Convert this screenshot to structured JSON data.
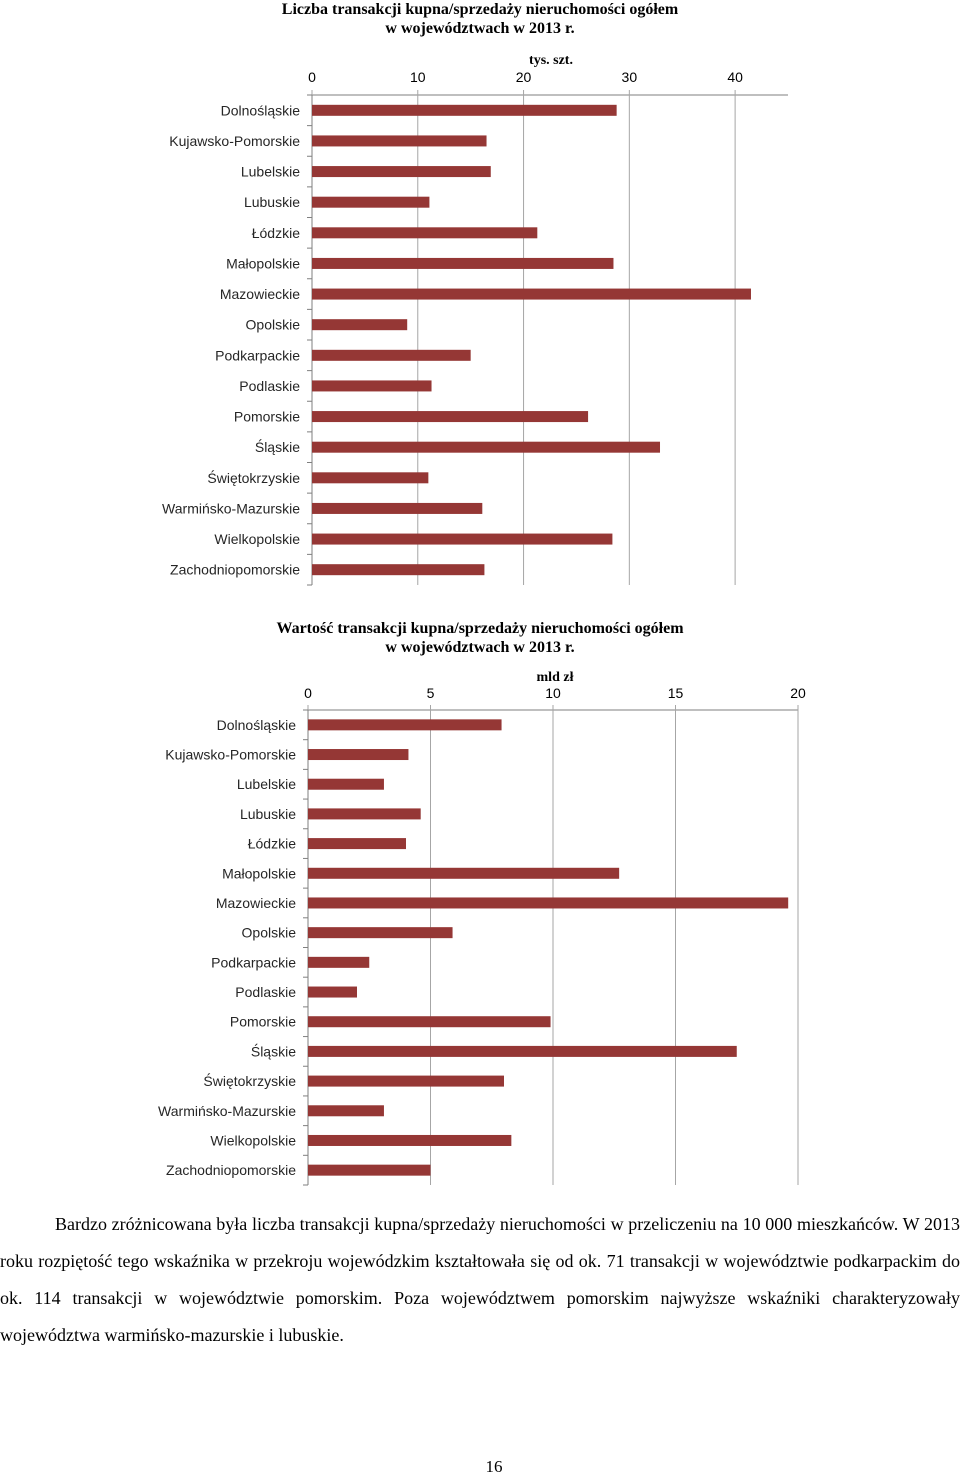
{
  "chart_data": [
    {
      "type": "bar",
      "orientation": "horizontal",
      "title_line1": "Liczba transakcji kupna/sprzedaży nieruchomości ogółem",
      "title_line2": "w województwach w 2013 r.",
      "unit_label": "tys. szt.",
      "xlim": [
        0,
        45
      ],
      "ticks": [
        0,
        10,
        20,
        30,
        40
      ],
      "grid": true,
      "bar_color": "#953735",
      "categories": [
        "Dolnośląskie",
        "Kujawsko-Pomorskie",
        "Lubelskie",
        "Lubuskie",
        "Łódzkie",
        "Małopolskie",
        "Mazowieckie",
        "Opolskie",
        "Podkarpackie",
        "Podlaskie",
        "Pomorskie",
        "Śląskie",
        "Świętokrzyskie",
        "Warmińsko-Mazurskie",
        "Wielkopolskie",
        "Zachodniopomorskie"
      ],
      "values": [
        28.8,
        16.5,
        16.9,
        11.1,
        21.3,
        28.5,
        41.5,
        9.0,
        15.0,
        11.3,
        26.1,
        32.9,
        11.0,
        16.1,
        28.4,
        16.3
      ]
    },
    {
      "type": "bar",
      "orientation": "horizontal",
      "title_line1": "Wartość transakcji kupna/sprzedaży nieruchomości ogółem",
      "title_line2": "w województwach w 2013 r.",
      "unit_label": "mld zł",
      "xlim": [
        0,
        20
      ],
      "ticks": [
        0,
        5,
        10,
        15,
        20
      ],
      "grid": true,
      "bar_color": "#953735",
      "categories": [
        "Dolnośląskie",
        "Kujawsko-Pomorskie",
        "Lubelskie",
        "Lubuskie",
        "Łódzkie",
        "Małopolskie",
        "Mazowieckie",
        "Opolskie",
        "Podkarpackie",
        "Podlaskie",
        "Pomorskie",
        "Śląskie",
        "Świętokrzyskie",
        "Warmińsko-Mazurskie",
        "Wielkopolskie",
        "Zachodniopomorskie"
      ],
      "values": [
        7.9,
        4.1,
        3.1,
        4.6,
        4.0,
        12.7,
        19.6,
        5.9,
        2.5,
        2.0,
        9.9,
        17.5,
        8.0,
        3.1,
        8.3,
        5.0
      ]
    }
  ],
  "paragraph": "Bardzo zróżnicowana była liczba transakcji kupna/sprzedaży nieruchomości w przeliczeniu na 10 000 mieszkańców. W 2013 roku rozpiętość tego wskaźnika w przekroju wojewódzkim kształtowała się od ok. 71 transakcji w województwie podkarpackim do ok. 114 transakcji w województwie pomorskim. Poza województwem pomorskim najwyższe wskaźniki charakteryzowały województwa warmińsko-mazurskie i lubuskie.",
  "page_number": "16"
}
